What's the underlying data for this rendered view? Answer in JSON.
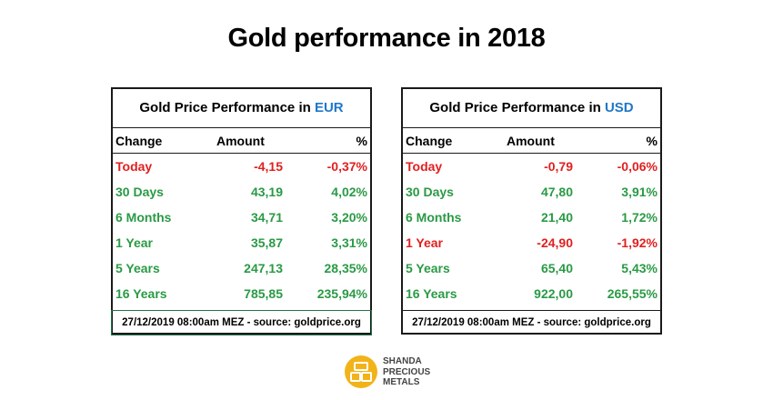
{
  "page_title": "Gold performance in 2018",
  "colors": {
    "positive": "#2a9a45",
    "negative": "#e11f1f",
    "currency": "#1f78c8",
    "logo": "#f2b318"
  },
  "tables": [
    {
      "title_prefix": "Gold Price Performance in",
      "currency": "EUR",
      "headers": {
        "change": "Change",
        "amount": "Amount",
        "percent": "%"
      },
      "rows": [
        {
          "change": "Today",
          "amount": "-4,15",
          "percent": "-0,37%",
          "trend": "neg"
        },
        {
          "change": "30 Days",
          "amount": "43,19",
          "percent": "4,02%",
          "trend": "pos"
        },
        {
          "change": "6 Months",
          "amount": "34,71",
          "percent": "3,20%",
          "trend": "pos"
        },
        {
          "change": "1 Year",
          "amount": "35,87",
          "percent": "3,31%",
          "trend": "pos"
        },
        {
          "change": "5 Years",
          "amount": "247,13",
          "percent": "28,35%",
          "trend": "pos"
        },
        {
          "change": "16 Years",
          "amount": "785,85",
          "percent": "235,94%",
          "trend": "pos"
        }
      ],
      "footer": "27/12/2019 08:00am MEZ - source: goldprice.org"
    },
    {
      "title_prefix": "Gold Price Performance in",
      "currency": "USD",
      "headers": {
        "change": "Change",
        "amount": "Amount",
        "percent": "%"
      },
      "rows": [
        {
          "change": "Today",
          "amount": "-0,79",
          "percent": "-0,06%",
          "trend": "neg"
        },
        {
          "change": "30 Days",
          "amount": "47,80",
          "percent": "3,91%",
          "trend": "pos"
        },
        {
          "change": "6 Months",
          "amount": "21,40",
          "percent": "1,72%",
          "trend": "pos"
        },
        {
          "change": "1 Year",
          "amount": "-24,90",
          "percent": "-1,92%",
          "trend": "neg"
        },
        {
          "change": "5 Years",
          "amount": "65,40",
          "percent": "5,43%",
          "trend": "pos"
        },
        {
          "change": "16 Years",
          "amount": "922,00",
          "percent": "265,55%",
          "trend": "pos"
        }
      ],
      "footer": "27/12/2019 08:00am MEZ - source: goldprice.org"
    }
  ],
  "brand": {
    "line1": "SHANDA",
    "line2": "PRECIOUS",
    "line3": "METALS",
    "logo_icon": "gold-bars-icon"
  }
}
